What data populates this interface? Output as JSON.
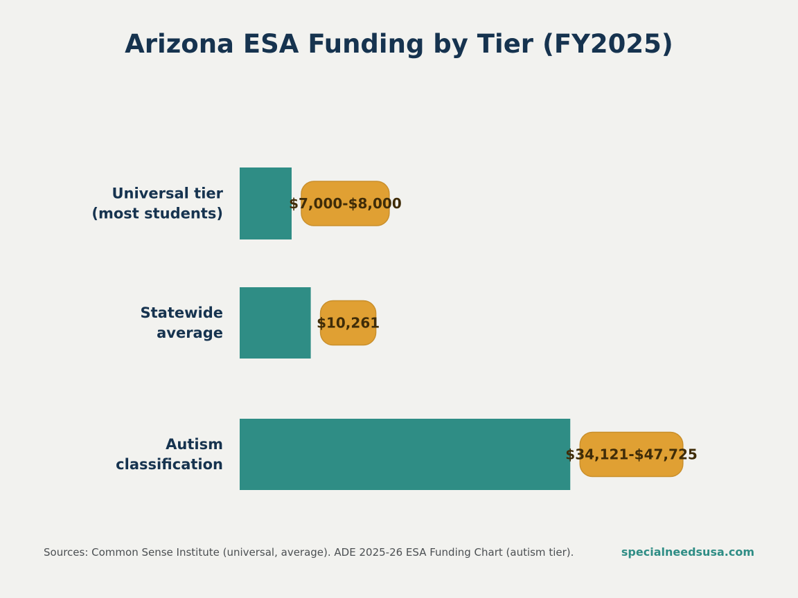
{
  "chart_data": {
    "type": "bar",
    "orientation": "horizontal",
    "title": "Arizona ESA Funding by Tier (FY2025)",
    "categories": [
      [
        "Universal tier",
        "(most students)"
      ],
      [
        "Statewide",
        "average"
      ],
      [
        "Autism",
        "classification"
      ]
    ],
    "values": [
      7500,
      10261,
      47725
    ],
    "value_labels": [
      "$7,000-$8,000",
      "$10,261",
      "$34,121-$47,725"
    ],
    "xlim": [
      0,
      62000
    ],
    "grid": false,
    "colors": {
      "bar": "#2f8d85",
      "label_fill": "#e0a033",
      "label_border": "#c98f2c"
    }
  },
  "footer": {
    "source": "Sources: Common Sense Institute (universal, average). ADE 2025-26 ESA Funding Chart (autism tier).",
    "site": "specialneedsusa.com"
  }
}
